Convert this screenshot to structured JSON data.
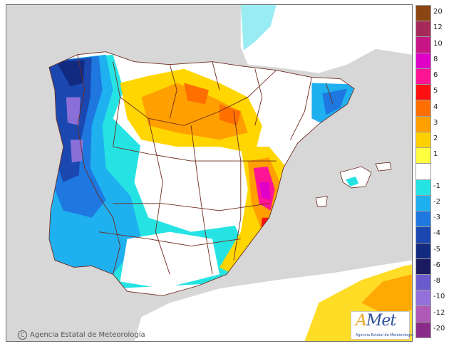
{
  "credit": {
    "symbol": "C",
    "text": "Agencia Estatal de Meteorología"
  },
  "logo": {
    "wordmark_a": "A",
    "wordmark_rest": "Met",
    "subtitle": "Agencia Estatal de Meteorología"
  },
  "legend": {
    "items": [
      {
        "label": "20",
        "color": "#8b4513"
      },
      {
        "label": "12",
        "color": "#a52a5a"
      },
      {
        "label": "10",
        "color": "#c71585"
      },
      {
        "label": "8",
        "color": "#e000c8"
      },
      {
        "label": "6",
        "color": "#ff1493"
      },
      {
        "label": "5",
        "color": "#ff1010"
      },
      {
        "label": "4",
        "color": "#ff6f00"
      },
      {
        "label": "3",
        "color": "#ffa000"
      },
      {
        "label": "2",
        "color": "#ffd000"
      },
      {
        "label": "1",
        "color": "#ffff40"
      },
      {
        "label": "",
        "color": "#ffffff"
      },
      {
        "label": "-1",
        "color": "#26e3e3"
      },
      {
        "label": "-2",
        "color": "#1fb0f0"
      },
      {
        "label": "-3",
        "color": "#1e78e0"
      },
      {
        "label": "-4",
        "color": "#1a48b0"
      },
      {
        "label": "-5",
        "color": "#122a80"
      },
      {
        "label": "-6",
        "color": "#1a1a60"
      },
      {
        "label": "-8",
        "color": "#6a5acd"
      },
      {
        "label": "-10",
        "color": "#9370db"
      },
      {
        "label": "-12",
        "color": "#b05ab8"
      },
      {
        "label": "-20",
        "color": "#8a2b8a"
      }
    ]
  }
}
